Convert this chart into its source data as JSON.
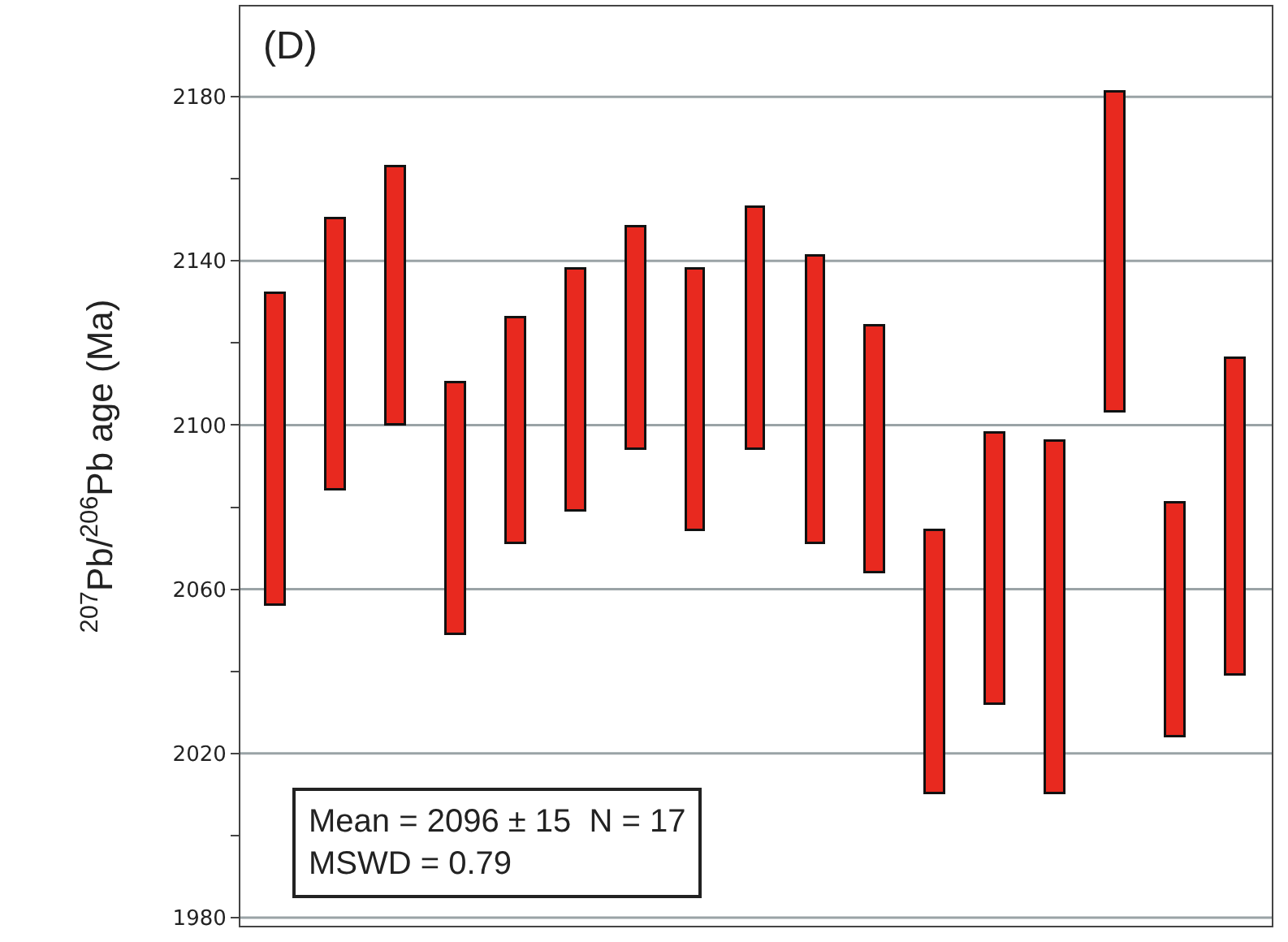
{
  "chart_data": {
    "type": "bar",
    "ylabel": "$^{207}$Pb/$^{206}$Pb age (Ma)",
    "categories": [
      null,
      null,
      null,
      null,
      null,
      null,
      null,
      null,
      null,
      null,
      null,
      null,
      null,
      null,
      null,
      null,
      null
    ],
    "base": [
      2056,
      2084,
      2100,
      2049,
      2071,
      2079,
      2094,
      2074,
      2094,
      2071,
      2064,
      2010,
      2032,
      2010,
      2103,
      2024,
      2039
    ],
    "values": [
      76,
      66,
      63,
      61,
      55,
      59,
      54,
      64,
      59,
      70,
      60,
      64,
      66,
      86,
      78,
      57,
      77
    ],
    "color": "#e8291f",
    "ylim": [
      1978,
      2202
    ],
    "yticks": [
      1980,
      {
        "value": 2000,
        "label": null
      },
      2020,
      {
        "value": 2040,
        "label": null
      },
      2060,
      {
        "value": 2080,
        "label": null
      },
      2100,
      {
        "value": 2120,
        "label": null
      },
      2140,
      {
        "value": 2160,
        "label": null
      },
      2180
    ],
    "grid": "y",
    "tick_labels": "y",
    "annotations": [
      "(D)",
      "Mean = 2096 ± 15  N = 17\nMSWD = 0.79"
    ]
  }
}
